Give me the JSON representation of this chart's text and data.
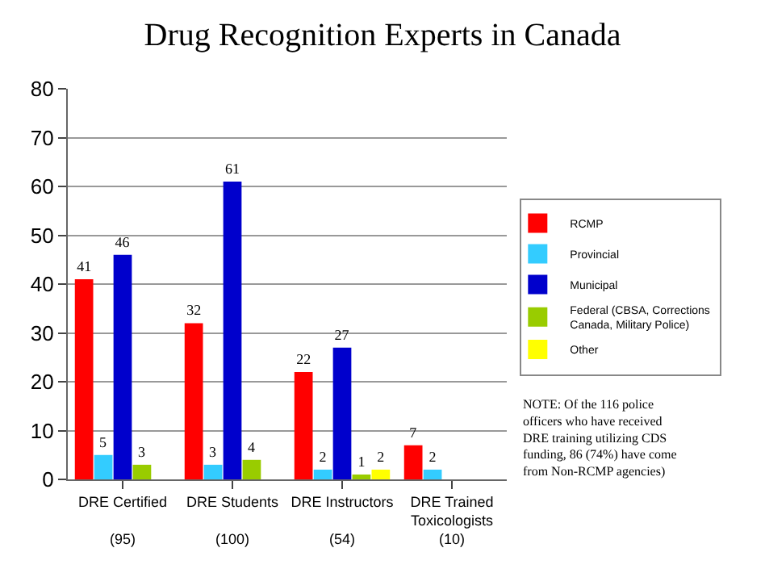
{
  "chart_data": {
    "type": "bar",
    "title": "Drug Recognition Experts in Canada",
    "categories": [
      "DRE Certified\n\n(95)",
      "DRE Students\n\n(100)",
      "DRE Instructors\n\n(54)",
      "DRE Trained\nToxicologists\n(10)"
    ],
    "series": [
      {
        "name": "RCMP",
        "color": "#ff0000",
        "values": [
          41,
          32,
          22,
          7
        ],
        "value_labels": [
          "41",
          "32",
          "22",
          "7"
        ]
      },
      {
        "name": "Provincial",
        "color": "#33ccff",
        "values": [
          5,
          3,
          2,
          2
        ],
        "value_labels": [
          "5",
          "3",
          "2",
          "2"
        ]
      },
      {
        "name": "Municipal",
        "color": "#0000cc",
        "values": [
          46,
          61,
          27,
          0
        ],
        "value_labels": [
          "46",
          "61",
          "27",
          null
        ]
      },
      {
        "name": "Federal (CBSA, Corrections\nCanada, Military Police)",
        "color": "#99cc00",
        "values": [
          3,
          4,
          1,
          0
        ],
        "value_labels": [
          "3",
          "4",
          "1",
          null
        ]
      },
      {
        "name": "Other",
        "color": "#ffff00",
        "values": [
          null,
          null,
          2,
          null
        ],
        "value_labels": [
          null,
          null,
          "2",
          null
        ]
      }
    ],
    "ylim": [
      0,
      80
    ],
    "yticks": [
      0,
      10,
      20,
      30,
      40,
      50,
      60,
      70,
      80
    ],
    "grid": "y",
    "legend": "right",
    "annotations": [
      "NOTE: Of the 116 police\nofficers who have received\nDRE training utilizing CDS\nfunding, 86 (74%) have come\nfrom Non-RCMP agencies)"
    ]
  }
}
